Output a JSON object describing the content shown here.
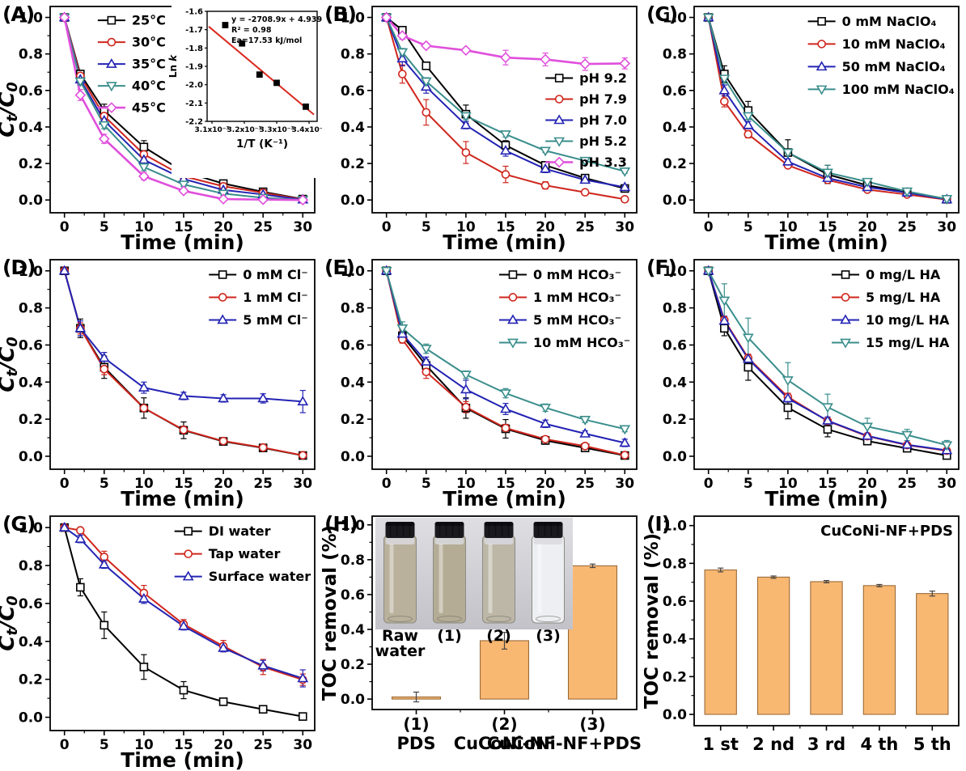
{
  "figure_title": "Degradation kinetics and TOC removal panels",
  "axis_defaults": {
    "x_ticks": [
      0,
      5,
      10,
      15,
      20,
      25,
      30
    ],
    "y_ticks": [
      0.0,
      0.2,
      0.4,
      0.6,
      0.8,
      1.0
    ],
    "x_points": [
      0,
      2,
      5,
      10,
      15,
      20,
      25,
      30
    ]
  },
  "colors": {
    "black": "#000000",
    "red": "#CF261D",
    "blue": "#2323B4",
    "teal": "#3A8E8C",
    "magenta": "#E04FDC",
    "bar_fill": "#F9B872",
    "bar_edge": "#9A6A38",
    "fit_line": "#D92B20"
  },
  "chart_data": [
    {
      "id": "A",
      "tag": "(A)",
      "type": "line",
      "xlabel": "Time (min)",
      "ylabel": "Ct/C0",
      "x": [
        0,
        2,
        5,
        10,
        15,
        20,
        25,
        30
      ],
      "legend": {
        "fx": 0.18,
        "fy": 0.02,
        "dy": 27
      },
      "series": [
        {
          "name": "25°C",
          "color": "#000000",
          "marker": "square",
          "values": [
            1.0,
            0.69,
            0.49,
            0.29,
            0.155,
            0.09,
            0.045,
            0.005
          ],
          "err": [
            0,
            0.02,
            0.035,
            0.035,
            0.02,
            0.015,
            0.01,
            0
          ]
        },
        {
          "name": "30°C",
          "color": "#CF261D",
          "marker": "circle",
          "values": [
            1.0,
            0.68,
            0.46,
            0.25,
            0.13,
            0.075,
            0.04,
            0.003
          ],
          "err": [
            0,
            0.02,
            0.02,
            0.02,
            0.015,
            0.01,
            0.01,
            0
          ]
        },
        {
          "name": "35°C",
          "color": "#2323B4",
          "marker": "tri-up",
          "values": [
            1.0,
            0.66,
            0.435,
            0.22,
            0.115,
            0.055,
            0.03,
            0.002
          ],
          "err": [
            0,
            0.03,
            0.02,
            0.02,
            0.015,
            0.01,
            0.008,
            0
          ]
        },
        {
          "name": "40°C",
          "color": "#3A8E8C",
          "marker": "tri-down",
          "values": [
            1.0,
            0.65,
            0.41,
            0.18,
            0.085,
            0.035,
            0.012,
            0.001
          ],
          "err": [
            0,
            0.02,
            0.02,
            0.02,
            0.012,
            0.01,
            0.006,
            0
          ]
        },
        {
          "name": "45°C",
          "color": "#E04FDC",
          "marker": "diamond",
          "lw": 2.6,
          "values": [
            1.0,
            0.575,
            0.335,
            0.13,
            0.05,
            0.005,
            0.002,
            0.0
          ],
          "err": [
            0,
            0.03,
            0.025,
            0.02,
            0.012,
            0.005,
            0,
            0
          ]
        }
      ],
      "inset": {
        "x_label": "1/T (K⁻¹)",
        "y_label": "Ln k",
        "x_tick_labels": [
          "3.1x10⁻³",
          "3.2x10⁻³",
          "3.3x10⁻³",
          "3.4x10⁻³"
        ],
        "x_ticks": [
          0.0031,
          0.0032,
          0.0033,
          0.0034
        ],
        "xlim": [
          0.003085,
          0.003425
        ],
        "y_ticks": [
          -1.6,
          -1.7,
          -1.8,
          -1.9,
          -2.0,
          -2.1,
          -2.2
        ],
        "ylim": [
          -2.2,
          -1.6
        ],
        "points_x": [
          0.003141,
          0.003193,
          0.003247,
          0.0033,
          0.00339
        ],
        "points_y": [
          -1.675,
          -1.775,
          -1.945,
          -1.99,
          -2.12
        ],
        "fit_x": [
          0.00309,
          0.003415
        ],
        "fit_y": [
          -1.683,
          -2.163
        ],
        "fit_color": "#D92B20",
        "text_lines": [
          "y = -2708.9x + 4.939",
          "R² = 0.98",
          "Ea=17.53 kJ/mol"
        ]
      }
    },
    {
      "id": "B",
      "tag": "(B)",
      "type": "line",
      "xlabel": "Time (min)",
      "x": [
        0,
        2,
        5,
        10,
        15,
        20,
        25,
        30
      ],
      "legend": {
        "fx": 0.655,
        "fy": 0.3,
        "dy": 26
      },
      "series": [
        {
          "name": "pH 9.2",
          "color": "#000000",
          "marker": "square",
          "values": [
            1.0,
            0.93,
            0.735,
            0.47,
            0.3,
            0.19,
            0.12,
            0.063
          ],
          "err": [
            0,
            0.02,
            0.02,
            0.05,
            0.025,
            0.015,
            0.02,
            0.01
          ]
        },
        {
          "name": "pH 7.9",
          "color": "#CF261D",
          "marker": "circle",
          "values": [
            1.0,
            0.69,
            0.48,
            0.26,
            0.14,
            0.08,
            0.042,
            0.004
          ],
          "err": [
            0,
            0.05,
            0.07,
            0.06,
            0.045,
            0.02,
            0.01,
            0
          ]
        },
        {
          "name": "pH 7.0",
          "color": "#2323B4",
          "marker": "tri-up",
          "values": [
            1.0,
            0.775,
            0.62,
            0.41,
            0.27,
            0.17,
            0.11,
            0.07
          ],
          "err": [
            0,
            0.04,
            0.035,
            0.02,
            0.03,
            0.02,
            0.015,
            0.01
          ]
        },
        {
          "name": "pH 5.2",
          "color": "#3A8E8C",
          "marker": "tri-down",
          "values": [
            1.0,
            0.81,
            0.65,
            0.46,
            0.36,
            0.27,
            0.215,
            0.157
          ],
          "err": [
            0,
            0.02,
            0.02,
            0.02,
            0.015,
            0.01,
            0.012,
            0.01
          ]
        },
        {
          "name": "pH 3.3",
          "color": "#E04FDC",
          "marker": "diamond",
          "lw": 2.6,
          "values": [
            1.0,
            0.9,
            0.845,
            0.82,
            0.78,
            0.77,
            0.745,
            0.748
          ],
          "err": [
            0,
            0.02,
            0.012,
            0.012,
            0.04,
            0.035,
            0.035,
            0.03
          ]
        }
      ]
    },
    {
      "id": "C",
      "tag": "(C)",
      "type": "line",
      "xlabel": "Time (min)",
      "x": [
        0,
        2,
        5,
        10,
        15,
        20,
        25,
        30
      ],
      "legend": {
        "fx": 0.43,
        "fy": 0.025,
        "dy": 28
      },
      "series": [
        {
          "name": "0 mM NaClO₄",
          "color": "#000000",
          "marker": "square",
          "values": [
            1.0,
            0.69,
            0.49,
            0.26,
            0.14,
            0.08,
            0.042,
            0.004
          ],
          "err": [
            0,
            0.045,
            0.05,
            0.07,
            0.05,
            0.02,
            0.01,
            0
          ]
        },
        {
          "name": "10 mM NaClO₄",
          "color": "#CF261D",
          "marker": "circle",
          "values": [
            1.0,
            0.54,
            0.36,
            0.19,
            0.11,
            0.057,
            0.03,
            0.002
          ],
          "err": [
            0,
            0.03,
            0.02,
            0.015,
            0.012,
            0.008,
            0.006,
            0
          ]
        },
        {
          "name": "50 mM NaClO₄",
          "color": "#2323B4",
          "marker": "tri-up",
          "values": [
            1.0,
            0.6,
            0.41,
            0.21,
            0.12,
            0.07,
            0.04,
            0.003
          ],
          "err": [
            0,
            0.03,
            0.02,
            0.015,
            0.012,
            0.01,
            0.008,
            0
          ]
        },
        {
          "name": "100 mM NaClO₄",
          "color": "#3A8E8C",
          "marker": "tri-down",
          "values": [
            1.0,
            0.665,
            0.46,
            0.26,
            0.15,
            0.1,
            0.047,
            0.006
          ],
          "err": [
            0,
            0.025,
            0.02,
            0.02,
            0.04,
            0.012,
            0.01,
            0
          ]
        }
      ]
    },
    {
      "id": "D",
      "tag": "(D)",
      "type": "line",
      "xlabel": "Time (min)",
      "ylabel": "Ct/C0",
      "x": [
        0,
        2,
        5,
        10,
        15,
        20,
        25,
        30
      ],
      "legend": {
        "fx": 0.6,
        "fy": 0.025,
        "dy": 28
      },
      "series": [
        {
          "name": "0 mM Cl⁻",
          "color": "#000000",
          "marker": "square",
          "values": [
            1.0,
            0.69,
            0.48,
            0.26,
            0.14,
            0.08,
            0.045,
            0.004
          ],
          "err": [
            0,
            0.05,
            0.06,
            0.055,
            0.045,
            0.02,
            0.01,
            0
          ]
        },
        {
          "name": "1 mM Cl⁻",
          "color": "#CF261D",
          "marker": "circle",
          "values": [
            1.0,
            0.69,
            0.47,
            0.26,
            0.142,
            0.082,
            0.047,
            0.005
          ],
          "err": [
            0,
            0.03,
            0.03,
            0.02,
            0.02,
            0.015,
            0.01,
            0
          ]
        },
        {
          "name": "5 mM Cl⁻",
          "color": "#2323B4",
          "marker": "tri-up",
          "values": [
            1.0,
            0.69,
            0.53,
            0.37,
            0.325,
            0.312,
            0.312,
            0.295
          ],
          "err": [
            0,
            0.04,
            0.03,
            0.03,
            0.02,
            0.02,
            0.025,
            0.06
          ]
        }
      ]
    },
    {
      "id": "E",
      "tag": "(E)",
      "type": "line",
      "xlabel": "Time (min)",
      "x": [
        0,
        2,
        5,
        10,
        15,
        20,
        25,
        30
      ],
      "legend": {
        "fx": 0.48,
        "fy": 0.025,
        "dy": 28
      },
      "series": [
        {
          "name": "0 mM HCO₃⁻",
          "color": "#000000",
          "marker": "square",
          "values": [
            1.0,
            0.65,
            0.49,
            0.26,
            0.148,
            0.085,
            0.045,
            0.004
          ],
          "err": [
            0,
            0.02,
            0.03,
            0.055,
            0.05,
            0.02,
            0.015,
            0
          ]
        },
        {
          "name": "1 mM HCO₃⁻",
          "color": "#CF261D",
          "marker": "circle",
          "values": [
            1.0,
            0.63,
            0.455,
            0.265,
            0.152,
            0.092,
            0.055,
            0.006
          ],
          "err": [
            0,
            0.02,
            0.035,
            0.03,
            0.02,
            0.015,
            0.012,
            0
          ]
        },
        {
          "name": "5 mM HCO₃⁻",
          "color": "#2323B4",
          "marker": "tri-up",
          "values": [
            1.0,
            0.66,
            0.51,
            0.36,
            0.255,
            0.175,
            0.122,
            0.072
          ],
          "err": [
            0,
            0.03,
            0.025,
            0.05,
            0.03,
            0.02,
            0.015,
            0.02
          ]
        },
        {
          "name": "10 mM HCO₃⁻",
          "color": "#3A8E8C",
          "marker": "tri-down",
          "values": [
            1.0,
            0.69,
            0.58,
            0.44,
            0.34,
            0.262,
            0.197,
            0.147
          ],
          "err": [
            0,
            0.035,
            0.025,
            0.02,
            0.025,
            0.02,
            0.015,
            0.015
          ]
        }
      ]
    },
    {
      "id": "F",
      "tag": "(F)",
      "type": "line",
      "xlabel": "Time (min)",
      "x": [
        0,
        2,
        5,
        10,
        15,
        20,
        25,
        30
      ],
      "legend": {
        "fx": 0.52,
        "fy": 0.025,
        "dy": 28
      },
      "series": [
        {
          "name": "0 mg/L HA",
          "color": "#000000",
          "marker": "square",
          "values": [
            1.0,
            0.69,
            0.48,
            0.262,
            0.145,
            0.082,
            0.043,
            0.004
          ],
          "err": [
            0,
            0.04,
            0.07,
            0.06,
            0.04,
            0.02,
            0.012,
            0
          ]
        },
        {
          "name": "5 mg/L HA",
          "color": "#CF261D",
          "marker": "circle",
          "values": [
            1.0,
            0.735,
            0.53,
            0.32,
            0.19,
            0.108,
            0.06,
            0.03
          ],
          "err": [
            0,
            0.02,
            0.02,
            0.02,
            0.015,
            0.012,
            0.01,
            0.008
          ]
        },
        {
          "name": "10 mg/L HA",
          "color": "#2323B4",
          "marker": "tri-up",
          "values": [
            1.0,
            0.73,
            0.525,
            0.312,
            0.192,
            0.11,
            0.062,
            0.032
          ],
          "err": [
            0,
            0.025,
            0.02,
            0.02,
            0.02,
            0.015,
            0.012,
            0.01
          ]
        },
        {
          "name": "15 mg/L HA",
          "color": "#3A8E8C",
          "marker": "tri-down",
          "values": [
            1.0,
            0.84,
            0.64,
            0.41,
            0.265,
            0.16,
            0.115,
            0.06
          ],
          "err": [
            0,
            0.09,
            0.105,
            0.095,
            0.07,
            0.045,
            0.03,
            0.025
          ]
        }
      ]
    },
    {
      "id": "G",
      "tag": "(G)",
      "type": "line",
      "xlabel": "Time (min)",
      "ylabel": "Ct/C0",
      "x": [
        0,
        2,
        5,
        10,
        15,
        20,
        25,
        30
      ],
      "legend": {
        "fx": 0.47,
        "fy": 0.025,
        "dy": 28
      },
      "series": [
        {
          "name": "DI water",
          "color": "#000000",
          "marker": "square",
          "values": [
            1.0,
            0.685,
            0.485,
            0.265,
            0.143,
            0.082,
            0.042,
            0.004
          ],
          "err": [
            0,
            0.045,
            0.07,
            0.065,
            0.045,
            0.018,
            0.01,
            0
          ]
        },
        {
          "name": "Tap water",
          "color": "#CF261D",
          "marker": "circle",
          "values": [
            1.0,
            0.985,
            0.845,
            0.655,
            0.49,
            0.375,
            0.265,
            0.198
          ],
          "err": [
            0,
            0.01,
            0.03,
            0.04,
            0.025,
            0.03,
            0.04,
            0.03
          ]
        },
        {
          "name": "Surface water",
          "color": "#2323B4",
          "marker": "tri-up",
          "values": [
            1.0,
            0.94,
            0.805,
            0.625,
            0.48,
            0.365,
            0.272,
            0.205
          ],
          "err": [
            0,
            0.02,
            0.02,
            0.025,
            0.02,
            0.02,
            0.028,
            0.045
          ]
        }
      ]
    },
    {
      "id": "H",
      "tag": "(H)",
      "type": "bar",
      "ylabel": "TOC removal (%)",
      "categories": [
        "(1)",
        "(2)",
        "(3)"
      ],
      "sub_labels": [
        "PDS",
        "CuCoNi-NF",
        "CuCoNi-NF+PDS"
      ],
      "values": [
        0.012,
        0.335,
        0.765
      ],
      "err": [
        0.028,
        0.048,
        0.01
      ],
      "bar_fill": "#F9B872",
      "bar_edge": "#9A6A38",
      "photo": {
        "bg_top": "#dedee3",
        "bg_bottom": "#c2c2c8",
        "cap_color": "#1a1a1e",
        "vial_liquids": [
          "#b9b19b",
          "#b4ac95",
          "#bdb7a7",
          "#edeff3"
        ],
        "labels": [
          [
            "Raw",
            "water"
          ],
          [
            "(1)"
          ],
          [
            "(2)"
          ],
          [
            "(3)"
          ]
        ]
      }
    },
    {
      "id": "I",
      "tag": "(I)",
      "type": "bar",
      "ylabel": "TOC removal (%)",
      "annotation": "CuCoNi-NF+PDS",
      "categories": [
        "1 st",
        "2 nd",
        "3 rd",
        "4 th",
        "5 th"
      ],
      "values": [
        0.765,
        0.727,
        0.703,
        0.682,
        0.64
      ],
      "err": [
        0.01,
        0.006,
        0.006,
        0.006,
        0.013
      ],
      "bar_fill": "#F9B872",
      "bar_edge": "#9A6A38"
    }
  ]
}
